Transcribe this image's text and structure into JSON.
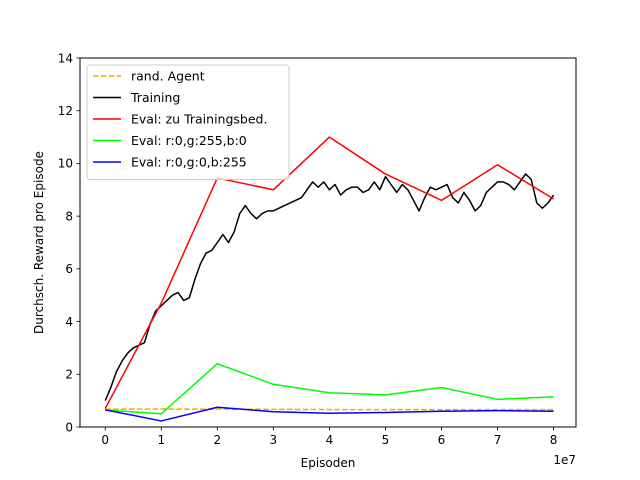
{
  "chart_data": {
    "type": "line",
    "xlabel": "Episoden",
    "ylabel": "Durchsch. Reward pro Episode",
    "x_offset_label": "1e7",
    "xlim": [
      -0.45,
      8.4
    ],
    "ylim": [
      0,
      14
    ],
    "xticks": [
      0,
      1,
      2,
      3,
      4,
      5,
      6,
      7,
      8
    ],
    "yticks": [
      0,
      2,
      4,
      6,
      8,
      10,
      12,
      14
    ],
    "grid": false,
    "legend_position": "top-left",
    "series": [
      {
        "name": "rand. Agent",
        "color": "#ffa500",
        "dash": "dashed",
        "x": [
          0,
          1,
          2,
          3,
          4,
          5,
          6,
          7,
          8
        ],
        "y": [
          0.68,
          0.68,
          0.68,
          0.67,
          0.66,
          0.66,
          0.66,
          0.66,
          0.66
        ]
      },
      {
        "name": "Training",
        "color": "#000000",
        "dash": "solid",
        "x": [
          0,
          0.1,
          0.2,
          0.3,
          0.4,
          0.5,
          0.6,
          0.7,
          0.8,
          0.9,
          1.0,
          1.1,
          1.2,
          1.3,
          1.4,
          1.5,
          1.6,
          1.7,
          1.8,
          1.9,
          2.0,
          2.1,
          2.2,
          2.3,
          2.4,
          2.5,
          2.6,
          2.7,
          2.8,
          2.9,
          3.0,
          3.1,
          3.2,
          3.3,
          3.4,
          3.5,
          3.6,
          3.7,
          3.8,
          3.9,
          4.0,
          4.1,
          4.2,
          4.3,
          4.4,
          4.5,
          4.6,
          4.7,
          4.8,
          4.9,
          5.0,
          5.1,
          5.2,
          5.3,
          5.4,
          5.5,
          5.6,
          5.7,
          5.8,
          5.9,
          6.0,
          6.1,
          6.2,
          6.3,
          6.4,
          6.5,
          6.6,
          6.7,
          6.8,
          6.9,
          7.0,
          7.1,
          7.2,
          7.3,
          7.4,
          7.5,
          7.6,
          7.7,
          7.8,
          7.9,
          8.0
        ],
        "y": [
          1.0,
          1.5,
          2.1,
          2.5,
          2.8,
          3.0,
          3.1,
          3.2,
          3.9,
          4.4,
          4.6,
          4.8,
          5.0,
          5.1,
          4.8,
          4.9,
          5.6,
          6.2,
          6.6,
          6.7,
          7.0,
          7.3,
          7.0,
          7.4,
          8.1,
          8.4,
          8.1,
          7.9,
          8.1,
          8.2,
          8.2,
          8.3,
          8.4,
          8.5,
          8.6,
          8.7,
          9.0,
          9.3,
          9.1,
          9.3,
          9.0,
          9.2,
          8.8,
          9.0,
          9.1,
          9.1,
          8.9,
          9.0,
          9.3,
          9.0,
          9.5,
          9.2,
          8.9,
          9.2,
          9.0,
          8.6,
          8.2,
          8.7,
          9.1,
          9.0,
          9.1,
          9.2,
          8.7,
          8.5,
          8.9,
          8.6,
          8.2,
          8.4,
          8.9,
          9.1,
          9.3,
          9.3,
          9.2,
          9.0,
          9.3,
          9.6,
          9.4,
          8.5,
          8.3,
          8.5,
          8.8
        ]
      },
      {
        "name": "Eval: zu Trainingsbed.",
        "color": "#ff0000",
        "dash": "solid",
        "x": [
          0,
          1,
          2,
          3,
          4,
          5,
          6,
          7,
          8
        ],
        "y": [
          0.7,
          4.7,
          9.45,
          9.0,
          11.0,
          9.6,
          8.6,
          9.95,
          8.65
        ]
      },
      {
        "name": "Eval: r:0,g:255,b:0",
        "color": "#00ff00",
        "dash": "solid",
        "x": [
          0,
          1,
          2,
          3,
          4,
          5,
          6,
          7,
          8
        ],
        "y": [
          0.65,
          0.5,
          2.4,
          1.62,
          1.3,
          1.22,
          1.5,
          1.05,
          1.15
        ]
      },
      {
        "name": "Eval: r:0,g:0,b:255",
        "color": "#0000ff",
        "dash": "solid",
        "x": [
          0,
          1,
          2,
          3,
          4,
          5,
          6,
          7,
          8
        ],
        "y": [
          0.65,
          0.23,
          0.75,
          0.58,
          0.52,
          0.55,
          0.6,
          0.62,
          0.6
        ]
      }
    ]
  }
}
